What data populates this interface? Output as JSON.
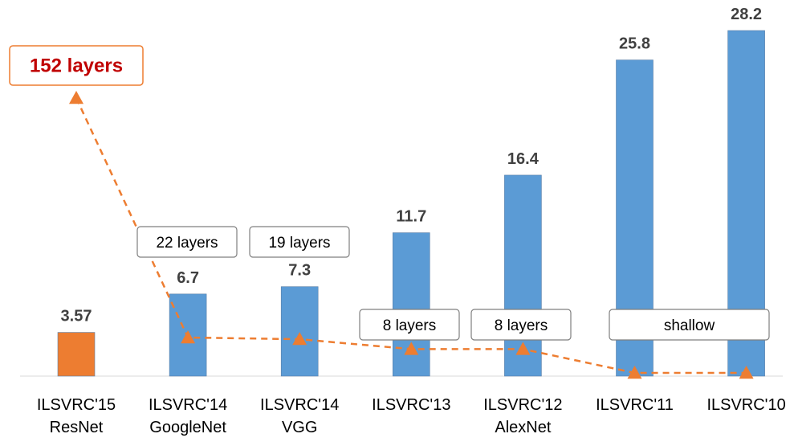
{
  "colors": {
    "bar": "#5b9bd5",
    "highlight_bar": "#ed7d31",
    "depth_line": "#ed7d31",
    "highlight_text": "#c00000",
    "label_border": "#7f7f7f"
  },
  "chart_data": {
    "type": "bar",
    "title": "",
    "xlabel": "",
    "ylabel": "",
    "ylim": [
      0,
      30
    ],
    "grid": false,
    "legend": "none",
    "categories": [
      {
        "line1": "ILSVRC'15",
        "line2": "ResNet"
      },
      {
        "line1": "ILSVRC'14",
        "line2": "GoogleNet"
      },
      {
        "line1": "ILSVRC'14",
        "line2": "VGG"
      },
      {
        "line1": "ILSVRC'13",
        "line2": ""
      },
      {
        "line1": "ILSVRC'12",
        "line2": "AlexNet"
      },
      {
        "line1": "ILSVRC'11",
        "line2": ""
      },
      {
        "line1": "ILSVRC'10",
        "line2": ""
      }
    ],
    "values": [
      3.57,
      6.7,
      7.3,
      11.7,
      16.4,
      25.8,
      28.2
    ],
    "value_labels": [
      "3.57",
      "6.7",
      "7.3",
      "11.7",
      "16.4",
      "25.8",
      "28.2"
    ],
    "highlight_index": 0,
    "depth_series": {
      "type": "line",
      "style": "dashed",
      "marker": "triangle",
      "layers": [
        152,
        22,
        19,
        8,
        8,
        1,
        1
      ]
    },
    "layer_annotations": [
      {
        "text": "152 layers",
        "emphasis": true
      },
      {
        "text": "22 layers"
      },
      {
        "text": "19 layers"
      },
      {
        "text": "8 layers"
      },
      {
        "text": "8 layers"
      },
      {
        "text": "shallow",
        "span": [
          5,
          6
        ]
      }
    ]
  }
}
